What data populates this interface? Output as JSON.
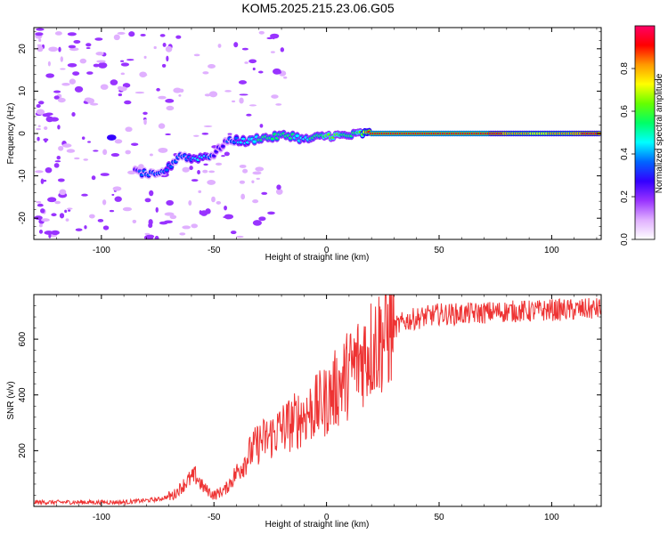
{
  "title": "KOM5.2025.215.23.06.G05",
  "chart_data": [
    {
      "type": "heatmap",
      "xlabel": "Height of straight line (km)",
      "ylabel": "Frequency (Hz)",
      "xlim": [
        -130,
        122
      ],
      "ylim": [
        -25,
        25
      ],
      "x_ticks": [
        -100,
        -50,
        0,
        50,
        100
      ],
      "y_ticks": [
        -20,
        -10,
        0,
        10,
        20
      ],
      "colorbar": {
        "label": "Normalized spectral amplitude",
        "range": [
          0,
          1
        ],
        "ticks": [
          "0.0",
          "0.2",
          "0.4",
          "0.6",
          "0.8"
        ],
        "colors": [
          "#ffffff",
          "#e0b0ff",
          "#9933ff",
          "#3300ff",
          "#0066ff",
          "#00ffff",
          "#00ff66",
          "#66ff00",
          "#ffff00",
          "#ff9900",
          "#ff0000",
          "#ff0066"
        ]
      },
      "ridge": [
        {
          "x": -85,
          "f": -9,
          "a": 0.3
        },
        {
          "x": -80,
          "f": -9.5,
          "a": 0.35
        },
        {
          "x": -75,
          "f": -10,
          "a": 0.35
        },
        {
          "x": -70,
          "f": -8,
          "a": 0.4
        },
        {
          "x": -65,
          "f": -5,
          "a": 0.35
        },
        {
          "x": -60,
          "f": -6,
          "a": 0.4
        },
        {
          "x": -55,
          "f": -5.5,
          "a": 0.45
        },
        {
          "x": -50,
          "f": -5,
          "a": 0.3
        },
        {
          "x": -45,
          "f": -2,
          "a": 0.3
        },
        {
          "x": -40,
          "f": -1.5,
          "a": 0.4
        },
        {
          "x": -35,
          "f": -2,
          "a": 0.45
        },
        {
          "x": -30,
          "f": -1,
          "a": 0.5
        },
        {
          "x": -25,
          "f": -1,
          "a": 0.5
        },
        {
          "x": -20,
          "f": -0.5,
          "a": 0.55
        },
        {
          "x": -15,
          "f": -0.5,
          "a": 0.5
        },
        {
          "x": -10,
          "f": -1.5,
          "a": 0.45
        },
        {
          "x": -5,
          "f": -1,
          "a": 0.55
        },
        {
          "x": 0,
          "f": -0.5,
          "a": 0.6
        },
        {
          "x": 5,
          "f": -0.5,
          "a": 0.6
        },
        {
          "x": 10,
          "f": -0.5,
          "a": 0.55
        },
        {
          "x": 15,
          "f": 0,
          "a": 0.6
        },
        {
          "x": 20,
          "f": 0,
          "a": 0.95
        },
        {
          "x": 40,
          "f": 0,
          "a": 0.95
        },
        {
          "x": 60,
          "f": 0,
          "a": 0.95
        },
        {
          "x": 75,
          "f": 0,
          "a": 0.9
        },
        {
          "x": 85,
          "f": 0,
          "a": 0.8
        },
        {
          "x": 95,
          "f": 0,
          "a": 0.75
        },
        {
          "x": 110,
          "f": 0,
          "a": 0.85
        },
        {
          "x": 122,
          "f": 0,
          "a": 0.9
        }
      ]
    },
    {
      "type": "line",
      "xlabel": "Height of straight line (km)",
      "ylabel": "SNR (v/v)",
      "xlim": [
        -130,
        122
      ],
      "ylim": [
        0,
        760
      ],
      "x_ticks": [
        -100,
        -50,
        0,
        50,
        100
      ],
      "y_ticks": [
        200,
        400,
        600
      ],
      "color": "#ee3333",
      "x": [
        -130,
        -110,
        -90,
        -75,
        -68,
        -62,
        -58,
        -55,
        -50,
        -45,
        -40,
        -35,
        -30,
        -25,
        -20,
        -15,
        -10,
        -5,
        0,
        5,
        10,
        15,
        20,
        25,
        30,
        35,
        40,
        50,
        60,
        70,
        80,
        90,
        100,
        110,
        122
      ],
      "values": [
        15,
        15,
        15,
        25,
        40,
        90,
        110,
        70,
        40,
        60,
        120,
        180,
        230,
        250,
        280,
        300,
        330,
        350,
        380,
        430,
        480,
        530,
        570,
        610,
        640,
        665,
        675,
        690,
        690,
        695,
        700,
        700,
        705,
        705,
        710
      ]
    }
  ]
}
